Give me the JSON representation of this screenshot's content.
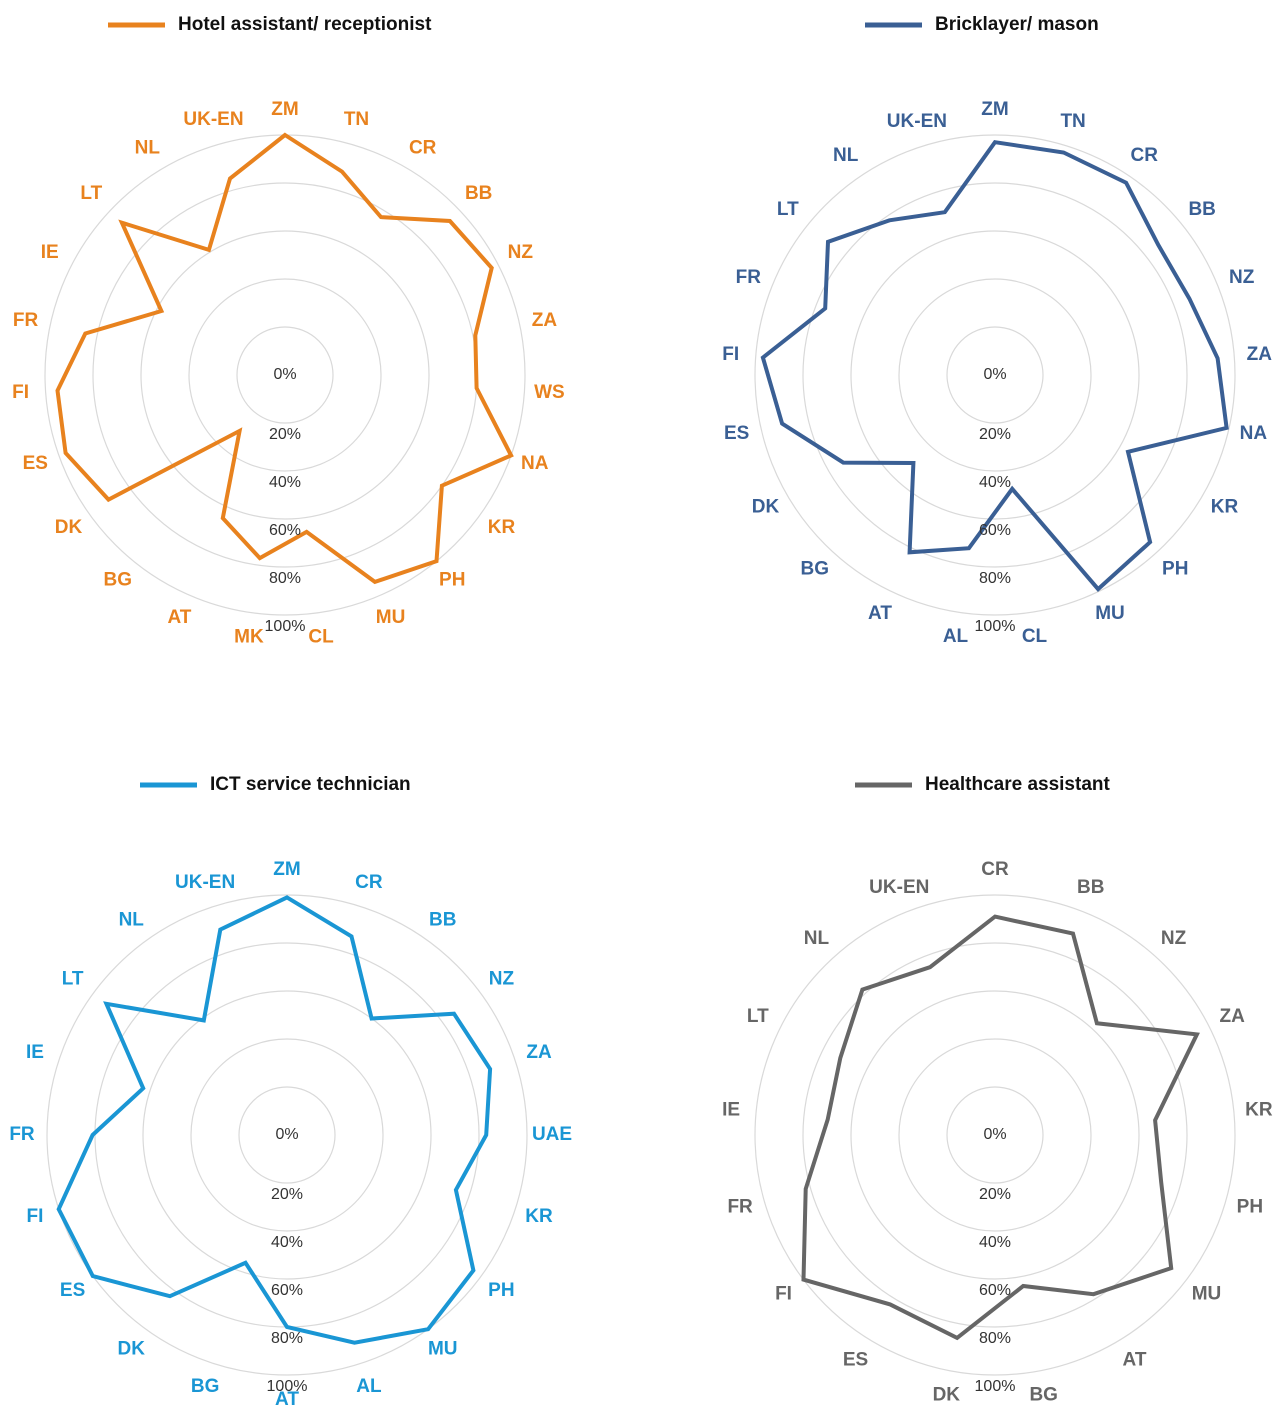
{
  "chart_data": [
    {
      "type": "radar",
      "categories": [
        "ZM",
        "TN",
        "CR",
        "BB",
        "NZ",
        "ZA",
        "WS",
        "NA",
        "KR",
        "PH",
        "MU",
        "CL",
        "MK",
        "AT",
        "BG",
        "DK",
        "ES",
        "FI",
        "FR",
        "IE",
        "LT",
        "NL",
        "UK-EN"
      ],
      "series": [
        {
          "name": "Hotel assistant/ receptionist",
          "color": "#e8821e",
          "values": [
            100,
            88,
            77,
            94,
            97,
            81,
            80,
            100,
            80,
            100,
            94,
            66,
            77,
            65,
            30,
            90,
            97,
            95,
            85,
            58,
            93,
            61,
            85
          ]
        }
      ],
      "rlim": [
        0,
        100
      ],
      "rticks": [
        {
          "value": 0,
          "label": "0%"
        },
        {
          "value": 20,
          "label": "20%"
        },
        {
          "value": 40,
          "label": "40%"
        },
        {
          "value": 60,
          "label": "60%"
        },
        {
          "value": 80,
          "label": "80%"
        },
        {
          "value": 100,
          "label": "100%"
        }
      ]
    },
    {
      "type": "radar",
      "categories": [
        "ZM",
        "TN",
        "CR",
        "BB",
        "NZ",
        "ZA",
        "NA",
        "KR",
        "PH",
        "MU",
        "CL",
        "AL",
        "AT",
        "BG",
        "DK",
        "ES",
        "FI",
        "FR",
        "LT",
        "NL",
        "UK-EN"
      ],
      "series": [
        {
          "name": "Bricklayer/ mason",
          "color": "#3a5f94",
          "values": [
            97,
            97,
            97,
            87,
            87,
            93,
            99,
            64,
            95,
            99,
            48,
            73,
            82,
            50,
            73,
            91,
            97,
            76,
            89,
            78,
            71
          ]
        }
      ],
      "rlim": [
        0,
        100
      ],
      "rticks": [
        {
          "value": 0,
          "label": "0%"
        },
        {
          "value": 20,
          "label": "20%"
        },
        {
          "value": 40,
          "label": "40%"
        },
        {
          "value": 60,
          "label": "60%"
        },
        {
          "value": 80,
          "label": "80%"
        },
        {
          "value": 100,
          "label": "100%"
        }
      ]
    },
    {
      "type": "radar",
      "categories": [
        "ZM",
        "CR",
        "BB",
        "NZ",
        "ZA",
        "UAE",
        "KR",
        "PH",
        "MU",
        "AL",
        "AT",
        "BG",
        "DK",
        "ES",
        "FI",
        "FR",
        "IE",
        "LT",
        "NL",
        "UK-EN"
      ],
      "series": [
        {
          "name": "ICT service technician",
          "color": "#1a96d4",
          "values": [
            99,
            87,
            60,
            86,
            89,
            83,
            74,
            96,
            100,
            91,
            80,
            56,
            83,
            100,
            100,
            81,
            63,
            93,
            59,
            90
          ]
        }
      ],
      "rlim": [
        0,
        100
      ],
      "rticks": [
        {
          "value": 0,
          "label": "0%"
        },
        {
          "value": 20,
          "label": "20%"
        },
        {
          "value": 40,
          "label": "40%"
        },
        {
          "value": 60,
          "label": "60%"
        },
        {
          "value": 80,
          "label": "80%"
        },
        {
          "value": 100,
          "label": "100%"
        }
      ]
    },
    {
      "type": "radar",
      "categories": [
        "CR",
        "BB",
        "NZ",
        "ZA",
        "KR",
        "PH",
        "MU",
        "AT",
        "BG",
        "DK",
        "ES",
        "FI",
        "FR",
        "IE",
        "LT",
        "NL",
        "UK-EN"
      ],
      "series": [
        {
          "name": "Healthcare assistant",
          "color": "#666666",
          "values": [
            91,
            90,
            63,
            94,
            67,
            72,
            92,
            78,
            64,
            86,
            83,
            100,
            82,
            70,
            72,
            82,
            75
          ]
        }
      ],
      "rlim": [
        0,
        100
      ],
      "rticks": [
        {
          "value": 0,
          "label": "0%"
        },
        {
          "value": 20,
          "label": "20%"
        },
        {
          "value": 40,
          "label": "40%"
        },
        {
          "value": 60,
          "label": "60%"
        },
        {
          "value": 80,
          "label": "80%"
        },
        {
          "value": 100,
          "label": "100%"
        }
      ]
    }
  ]
}
